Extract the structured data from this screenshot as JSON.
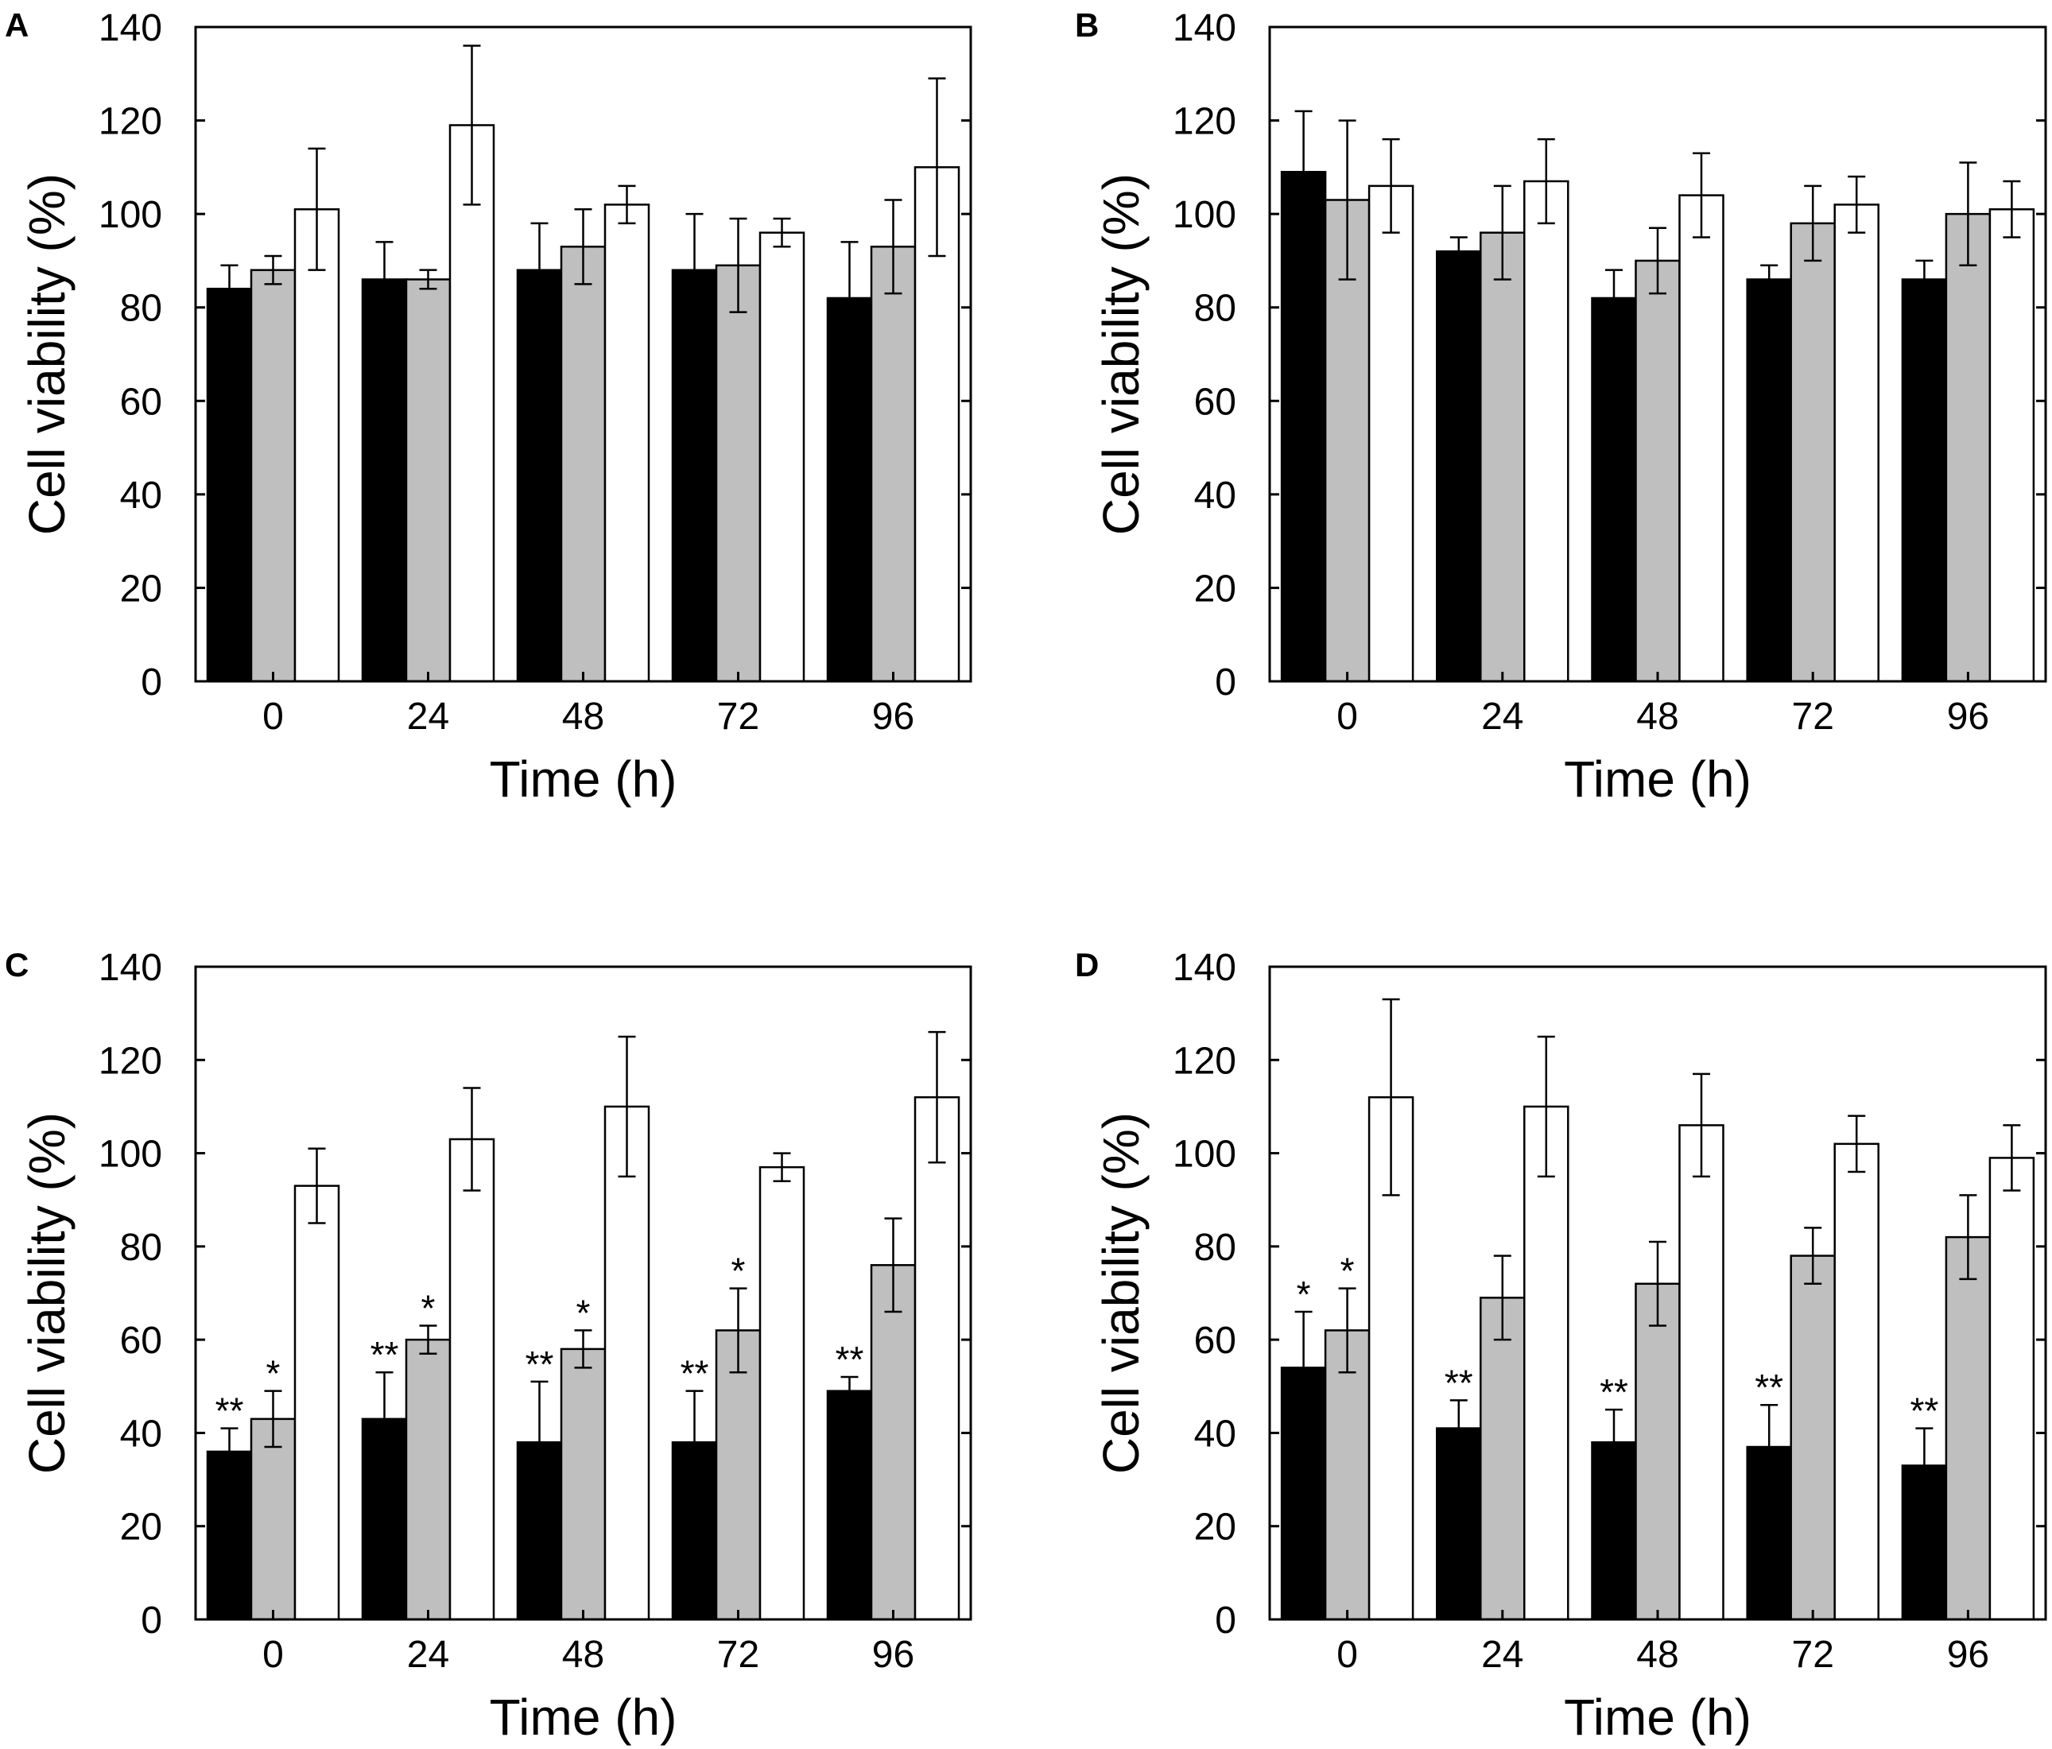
{
  "chart_data": [
    {
      "type": "bar",
      "panel_label": "A",
      "xlabel": "Time (h)",
      "ylabel": "Cell viability (%)",
      "ylim": [
        0,
        140
      ],
      "yticks": [
        "0",
        "20",
        "40",
        "60",
        "80",
        "100",
        "120",
        "140"
      ],
      "categories": [
        "0",
        "24",
        "48",
        "72",
        "96"
      ],
      "series": [
        {
          "name": "black",
          "color": "#000000",
          "values": [
            84,
            86,
            88,
            88,
            82
          ],
          "errors": [
            5,
            8,
            10,
            12,
            12
          ],
          "stars": [
            "",
            "",
            "",
            "",
            ""
          ]
        },
        {
          "name": "gray",
          "color": "#bfbfbf",
          "values": [
            88,
            86,
            93,
            89,
            93
          ],
          "errors": [
            3,
            2,
            8,
            10,
            10
          ],
          "stars": [
            "",
            "",
            "",
            "",
            ""
          ]
        },
        {
          "name": "white",
          "color": "#ffffff",
          "values": [
            101,
            119,
            102,
            96,
            110
          ],
          "errors": [
            13,
            17,
            4,
            3,
            19
          ],
          "stars": [
            "",
            "",
            "",
            "",
            ""
          ]
        }
      ]
    },
    {
      "type": "bar",
      "panel_label": "B",
      "xlabel": "Time (h)",
      "ylabel": "Cell viability (%)",
      "ylim": [
        0,
        140
      ],
      "yticks": [
        "0",
        "20",
        "40",
        "60",
        "80",
        "100",
        "120",
        "140"
      ],
      "categories": [
        "0",
        "24",
        "48",
        "72",
        "96"
      ],
      "series": [
        {
          "name": "black",
          "color": "#000000",
          "values": [
            109,
            92,
            82,
            86,
            86
          ],
          "errors": [
            13,
            3,
            6,
            3,
            4
          ],
          "stars": [
            "",
            "",
            "",
            "",
            ""
          ]
        },
        {
          "name": "gray",
          "color": "#bfbfbf",
          "values": [
            103,
            96,
            90,
            98,
            100
          ],
          "errors": [
            17,
            10,
            7,
            8,
            11
          ],
          "stars": [
            "",
            "",
            "",
            "",
            ""
          ]
        },
        {
          "name": "white",
          "color": "#ffffff",
          "values": [
            106,
            107,
            104,
            102,
            101
          ],
          "errors": [
            10,
            9,
            9,
            6,
            6
          ],
          "stars": [
            "",
            "",
            "",
            "",
            ""
          ]
        }
      ]
    },
    {
      "type": "bar",
      "panel_label": "C",
      "xlabel": "Time (h)",
      "ylabel": "Cell viability (%)",
      "ylim": [
        0,
        140
      ],
      "yticks": [
        "0",
        "20",
        "40",
        "60",
        "80",
        "100",
        "120",
        "140"
      ],
      "categories": [
        "0",
        "24",
        "48",
        "72",
        "96"
      ],
      "series": [
        {
          "name": "black",
          "color": "#000000",
          "values": [
            36,
            43,
            38,
            38,
            49
          ],
          "errors": [
            5,
            10,
            13,
            11,
            3
          ],
          "stars": [
            "**",
            "**",
            "**",
            "**",
            "**"
          ]
        },
        {
          "name": "gray",
          "color": "#bfbfbf",
          "values": [
            43,
            60,
            58,
            62,
            76
          ],
          "errors": [
            6,
            3,
            4,
            9,
            10
          ],
          "stars": [
            "*",
            "*",
            "*",
            "*",
            ""
          ]
        },
        {
          "name": "white",
          "color": "#ffffff",
          "values": [
            93,
            103,
            110,
            97,
            112
          ],
          "errors": [
            8,
            11,
            15,
            3,
            14
          ],
          "stars": [
            "",
            "",
            "",
            "",
            ""
          ]
        }
      ]
    },
    {
      "type": "bar",
      "panel_label": "D",
      "xlabel": "Time (h)",
      "ylabel": "Cell viability (%)",
      "ylim": [
        0,
        140
      ],
      "yticks": [
        "0",
        "20",
        "40",
        "60",
        "80",
        "100",
        "120",
        "140"
      ],
      "categories": [
        "0",
        "24",
        "48",
        "72",
        "96"
      ],
      "series": [
        {
          "name": "black",
          "color": "#000000",
          "values": [
            54,
            41,
            38,
            37,
            33
          ],
          "errors": [
            12,
            6,
            7,
            9,
            8
          ],
          "stars": [
            "*",
            "**",
            "**",
            "**",
            "**"
          ]
        },
        {
          "name": "gray",
          "color": "#bfbfbf",
          "values": [
            62,
            69,
            72,
            78,
            82
          ],
          "errors": [
            9,
            9,
            9,
            6,
            9
          ],
          "stars": [
            "*",
            "",
            "",
            "",
            ""
          ]
        },
        {
          "name": "white",
          "color": "#ffffff",
          "values": [
            112,
            110,
            106,
            102,
            99
          ],
          "errors": [
            21,
            15,
            11,
            6,
            7
          ],
          "stars": [
            "",
            "",
            "",
            "",
            ""
          ]
        }
      ]
    }
  ]
}
